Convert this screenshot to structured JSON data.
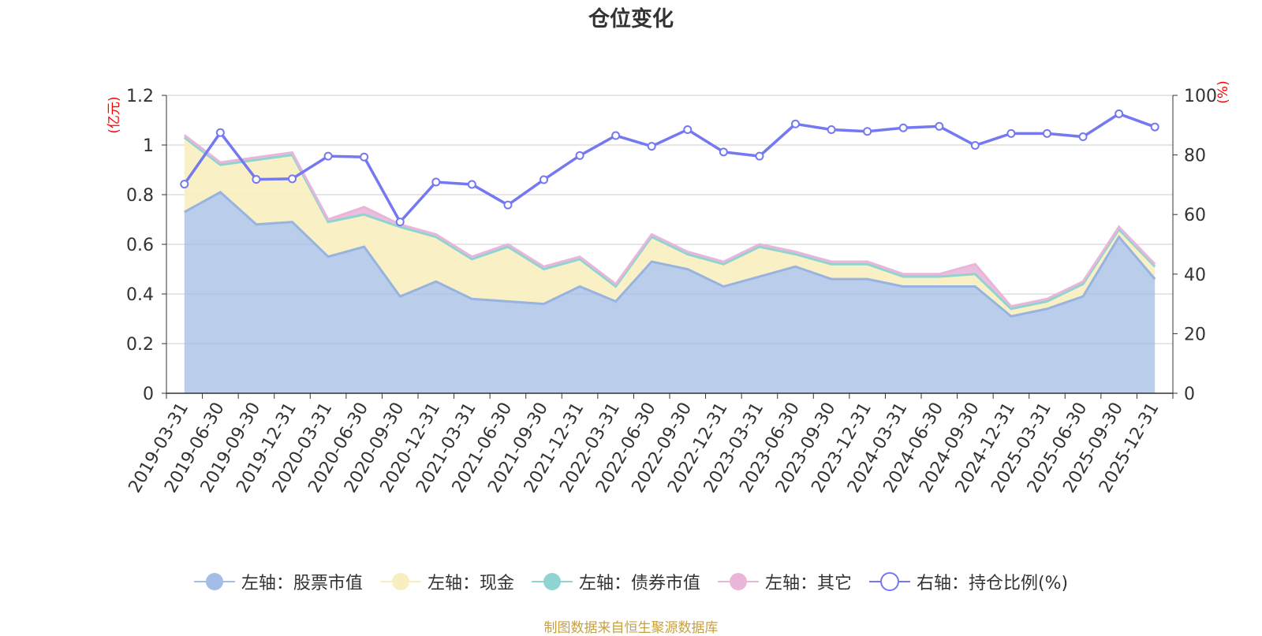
{
  "title": "仓位变化",
  "source_note": "制图数据来自恒生聚源数据库",
  "colors": {
    "stock": "#a3bde6",
    "stock_line": "#97b3df",
    "cash": "#f9eec0",
    "cash_line": "#f6e7a7",
    "bond": "#8fd3d3",
    "other": "#e9b6da",
    "ratio": "#7478f1",
    "unit_text": "#ff0000",
    "axis": "#333333",
    "grid": "#cccccc"
  },
  "chart_data": {
    "type": "area",
    "title": "仓位变化",
    "categories": [
      "2019-03-31",
      "2019-06-30",
      "2019-09-30",
      "2019-12-31",
      "2020-03-31",
      "2020-06-30",
      "2020-09-30",
      "2020-12-31",
      "2021-03-31",
      "2021-06-30",
      "2021-09-30",
      "2021-12-31",
      "2022-03-31",
      "2022-06-30",
      "2022-09-30",
      "2022-12-31",
      "2023-03-31",
      "2023-06-30",
      "2023-09-30",
      "2023-12-31",
      "2024-03-31",
      "2024-06-30",
      "2024-09-30",
      "2024-12-31",
      "2025-03-31",
      "2025-06-30",
      "2025-09-30",
      "2025-12-31"
    ],
    "left_axis": {
      "unit": "(亿元)",
      "ylim": [
        0,
        1.2
      ],
      "ticks": [
        "0",
        "0.2",
        "0.4",
        "0.6",
        "0.8",
        "1",
        "1.2"
      ]
    },
    "right_axis": {
      "unit": "(%)",
      "ylim": [
        0,
        100
      ],
      "ticks": [
        "0",
        "20",
        "40",
        "60",
        "80",
        "100"
      ]
    },
    "grid": true,
    "legend_position": "bottom",
    "series": [
      {
        "name": "左轴：股票市值",
        "key": "stock",
        "axis": "left",
        "kind": "stacked-area",
        "values": [
          0.73,
          0.81,
          0.68,
          0.69,
          0.55,
          0.59,
          0.39,
          0.45,
          0.38,
          0.37,
          0.36,
          0.43,
          0.37,
          0.53,
          0.5,
          0.43,
          0.47,
          0.51,
          0.46,
          0.46,
          0.43,
          0.43,
          0.43,
          0.31,
          0.34,
          0.39,
          0.63,
          0.46
        ]
      },
      {
        "name": "左轴：现金",
        "key": "cash",
        "axis": "left",
        "kind": "stacked-area",
        "values": [
          0.3,
          0.11,
          0.26,
          0.27,
          0.14,
          0.13,
          0.28,
          0.18,
          0.16,
          0.22,
          0.14,
          0.11,
          0.06,
          0.1,
          0.06,
          0.09,
          0.12,
          0.05,
          0.06,
          0.06,
          0.04,
          0.04,
          0.05,
          0.03,
          0.03,
          0.05,
          0.03,
          0.05
        ]
      },
      {
        "name": "左轴：债券市值",
        "key": "bond",
        "axis": "left",
        "kind": "stacked-area",
        "values": [
          0,
          0,
          0,
          0,
          0,
          0,
          0,
          0,
          0,
          0,
          0,
          0,
          0,
          0,
          0,
          0,
          0,
          0,
          0,
          0,
          0,
          0,
          0,
          0,
          0,
          0,
          0,
          0
        ]
      },
      {
        "name": "左轴：其它",
        "key": "other",
        "axis": "left",
        "kind": "stacked-area",
        "values": [
          0.01,
          0.01,
          0.01,
          0.01,
          0.01,
          0.03,
          0.01,
          0.01,
          0.01,
          0.01,
          0.01,
          0.01,
          0.01,
          0.01,
          0.01,
          0.01,
          0.01,
          0.01,
          0.01,
          0.01,
          0.01,
          0.01,
          0.04,
          0.01,
          0.01,
          0.01,
          0.01,
          0.01
        ]
      },
      {
        "name": "右轴：持仓比例(%)",
        "key": "ratio",
        "axis": "right",
        "kind": "line",
        "values": [
          70.2,
          87.5,
          71.8,
          72.0,
          79.6,
          79.3,
          57.5,
          70.9,
          70.1,
          63.2,
          71.7,
          79.8,
          86.5,
          82.9,
          88.5,
          81.0,
          79.6,
          90.4,
          88.5,
          87.9,
          89.1,
          89.6,
          83.2,
          87.2,
          87.2,
          86.1,
          93.8,
          89.4
        ]
      }
    ]
  }
}
